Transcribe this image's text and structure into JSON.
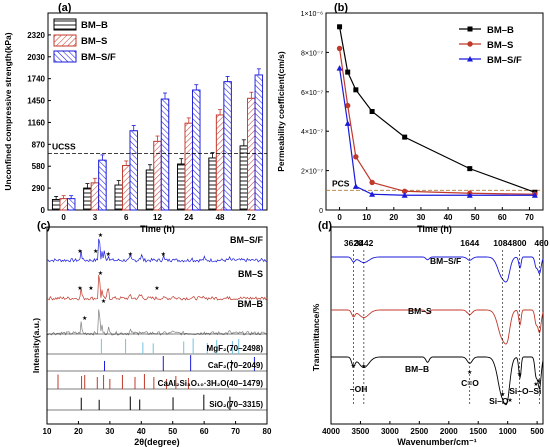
{
  "colors": {
    "bm_b": "#000000",
    "bm_s": "#c0392b",
    "bm_sf": "#1a1adb",
    "grey": "#808080",
    "tan": "#b07a3a"
  },
  "chart_data": [
    {
      "panel": "(a)",
      "type": "bar",
      "xlabel": "Time (h)",
      "ylabel": "Unconfined compressive strength(kPa)",
      "categories": [
        "0",
        "3",
        "6",
        "12",
        "24",
        "48",
        "72"
      ],
      "ylim": [
        0,
        2610
      ],
      "yticks": [
        0,
        290,
        580,
        870,
        1160,
        1450,
        1740,
        2030,
        2320
      ],
      "series": [
        {
          "name": "BM–B",
          "values": [
            140,
            290,
            330,
            530,
            610,
            690,
            850
          ],
          "errors": [
            40,
            60,
            60,
            70,
            70,
            70,
            80
          ]
        },
        {
          "name": "BM–S",
          "values": [
            150,
            360,
            590,
            910,
            1150,
            1260,
            1480
          ],
          "errors": [
            40,
            60,
            60,
            70,
            70,
            70,
            80
          ]
        },
        {
          "name": "BM–S/F",
          "values": [
            150,
            660,
            1050,
            1470,
            1590,
            1700,
            1790
          ],
          "errors": [
            40,
            70,
            70,
            80,
            70,
            70,
            80
          ]
        }
      ],
      "reference_line": {
        "label": "UCSS",
        "value": 750
      },
      "legend": "top-left"
    },
    {
      "panel": "(b)",
      "type": "line",
      "xlabel": "Time (h)",
      "ylabel": "Permeability coefficient(cm/s)",
      "xlim": [
        -5,
        75
      ],
      "xticks": [
        0,
        10,
        20,
        30,
        40,
        50,
        60,
        70
      ],
      "ylim": [
        0,
        1e-06
      ],
      "yticks": [
        0,
        2e-07,
        4e-07,
        6e-07,
        8e-07,
        1e-06
      ],
      "ytick_labels": [
        "0",
        "2×10⁻⁷",
        "4×10⁻⁷",
        "6×10⁻⁷",
        "8×10⁻⁷",
        "1×10⁻⁶"
      ],
      "series": [
        {
          "name": "BM–B",
          "x": [
            0,
            3,
            6,
            12,
            24,
            48,
            72
          ],
          "y": [
            9.3e-07,
            7e-07,
            6.1e-07,
            5e-07,
            3.7e-07,
            2.1e-07,
            9e-08
          ]
        },
        {
          "name": "BM–S",
          "x": [
            0,
            3,
            6,
            12,
            24,
            48,
            72
          ],
          "y": [
            8.2e-07,
            5.3e-07,
            2.7e-07,
            1.4e-07,
            9.5e-08,
            8.5e-08,
            8e-08
          ]
        },
        {
          "name": "BM–S/F",
          "x": [
            0,
            3,
            6,
            12,
            24,
            48,
            72
          ],
          "y": [
            7.2e-07,
            4.4e-07,
            1.2e-07,
            8e-08,
            7.5e-08,
            7.5e-08,
            7.5e-08
          ]
        }
      ],
      "reference_line": {
        "label": "PCS",
        "value": 1e-07
      },
      "legend": "top-right"
    },
    {
      "panel": "(c)",
      "type": "line",
      "xlabel": "2θ(degree)",
      "ylabel": "Intensity(a.u.)",
      "xlim": [
        10,
        80
      ],
      "xticks": [
        10,
        20,
        30,
        40,
        50,
        60,
        70,
        80
      ],
      "series_labels": [
        "BM–S/F",
        "BM–S",
        "BM–B"
      ],
      "references": [
        "MgF₂(70–2498)",
        "CaF₂(70–2049)",
        "CaAl₂Si₃O₁₀·3H₂O(40–1479)",
        "SiO₂(70–3315)"
      ]
    },
    {
      "panel": "(d)",
      "type": "line",
      "xlabel": "Wavenumber/cm⁻¹",
      "ylabel": "Transmittance/%",
      "xlim": [
        4000,
        400
      ],
      "xticks": [
        4000,
        3500,
        3000,
        2500,
        2000,
        1500,
        1000,
        500
      ],
      "series_labels": [
        "BM–S/F",
        "BM–S",
        "BM–B"
      ],
      "peak_labels": [
        "3620",
        "3442",
        "1644",
        "1084",
        "800",
        "460"
      ],
      "assignments": [
        "–OH",
        "C=O",
        "Si–O",
        "Si–O–Si"
      ]
    }
  ]
}
